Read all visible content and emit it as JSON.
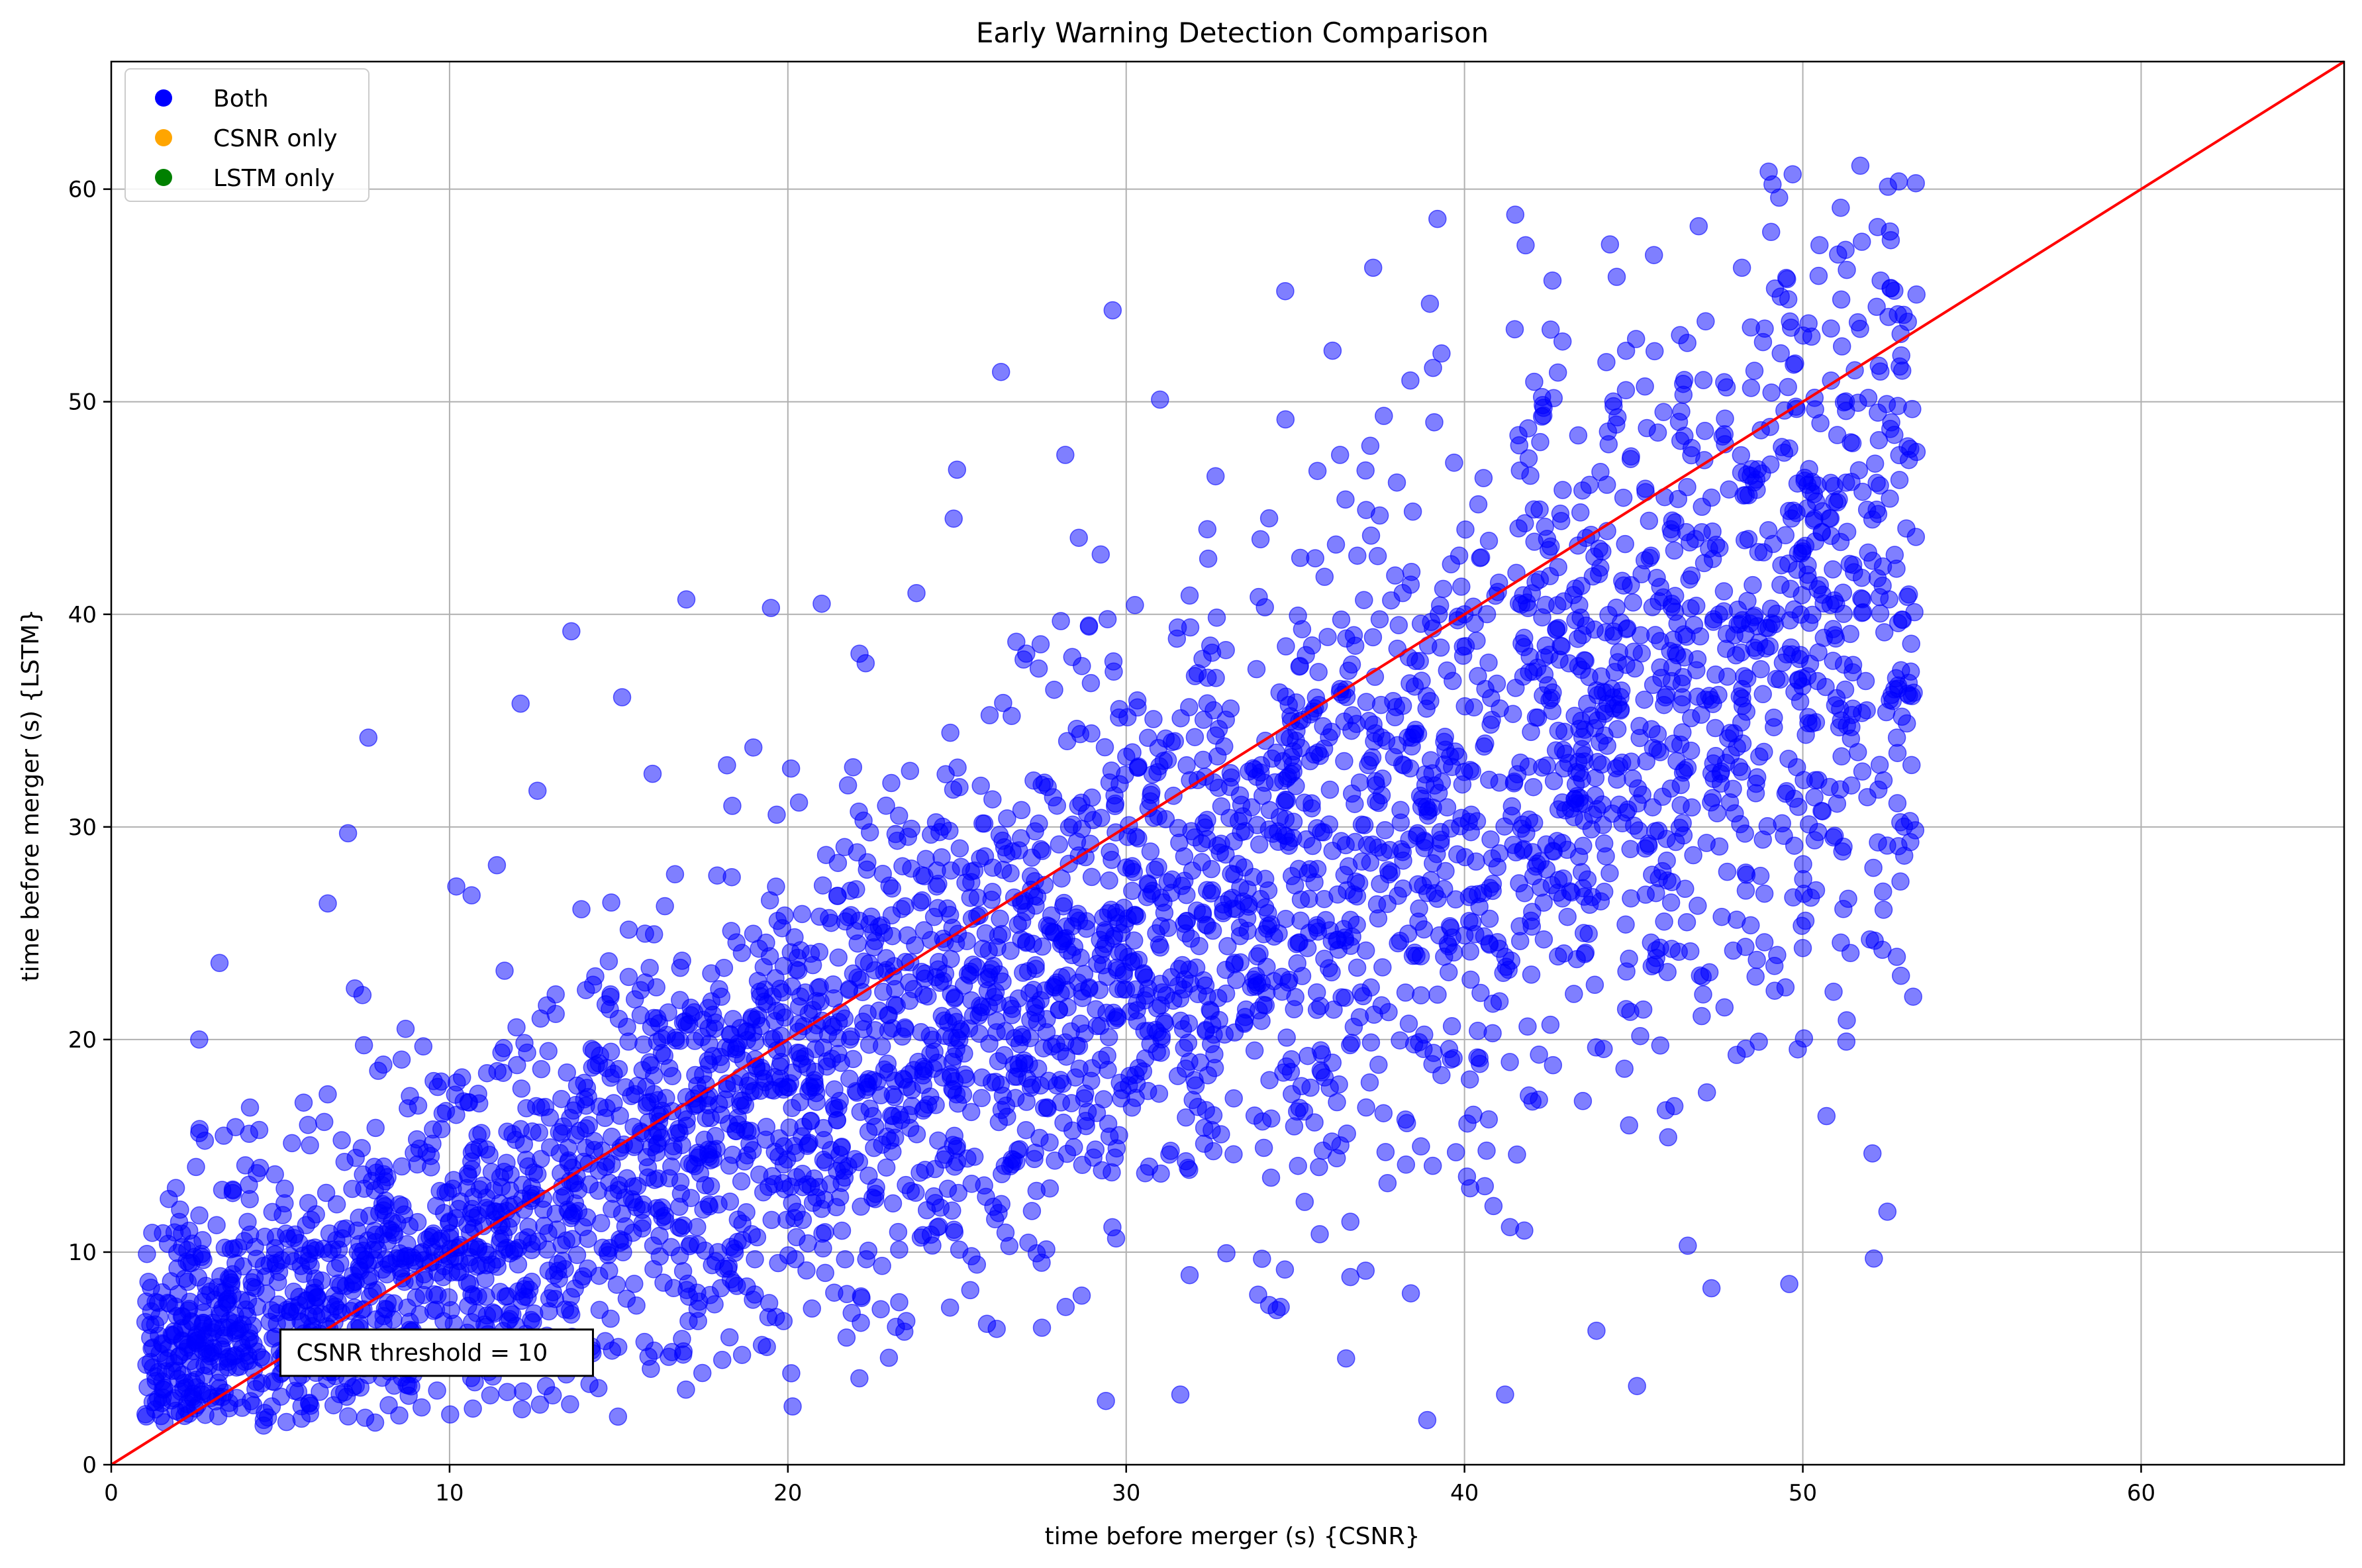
{
  "chart_data": {
    "type": "scatter",
    "title": "Early Warning Detection Comparison",
    "xlabel": "time before merger (s) {CSNR}",
    "ylabel": "time before merger (s) {LSTM}",
    "xlim": [
      0,
      66
    ],
    "ylim": [
      0,
      66
    ],
    "xticks": [
      0,
      10,
      20,
      30,
      40,
      50,
      60
    ],
    "yticks": [
      0,
      10,
      20,
      30,
      40,
      50,
      60
    ],
    "grid": true,
    "legend_position": "top-left",
    "legend": [
      {
        "label": "Both",
        "color": "#0000ff"
      },
      {
        "label": "CSNR only",
        "color": "#ffa500"
      },
      {
        "label": "LSTM only",
        "color": "#008000"
      }
    ],
    "reference_line": {
      "x": [
        0,
        66
      ],
      "y": [
        0,
        66
      ],
      "color": "#ff0000"
    },
    "annotation": {
      "text": "CSNR threshold = 10",
      "x": 5,
      "y": 5.3
    },
    "series": [
      {
        "label": "Both",
        "color": "#0000ff",
        "opacity": 0.5,
        "x_range": [
          1,
          53.4
        ],
        "y_range": [
          1.8,
          61.1
        ],
        "points_approx": 4000,
        "sample_points": [
          [
            1.1,
            8.6
          ],
          [
            1.3,
            2.6
          ],
          [
            1.5,
            2.9
          ],
          [
            1.7,
            12.5
          ],
          [
            2.1,
            5.8
          ],
          [
            2.4,
            10.4
          ],
          [
            2.6,
            15.6
          ],
          [
            2.6,
            20.0
          ],
          [
            3.2,
            23.6
          ],
          [
            3.6,
            12.9
          ],
          [
            4.1,
            16.8
          ],
          [
            4.2,
            2.8
          ],
          [
            5.2,
            5.6
          ],
          [
            6.4,
            26.4
          ],
          [
            7.0,
            29.7
          ],
          [
            7.2,
            22.4
          ],
          [
            7.6,
            34.2
          ],
          [
            8.7,
            20.5
          ],
          [
            9.2,
            10.0
          ],
          [
            10.2,
            27.2
          ],
          [
            10.6,
            8.5
          ],
          [
            11.4,
            28.2
          ],
          [
            12.1,
            35.8
          ],
          [
            12.6,
            31.7
          ],
          [
            13.6,
            39.2
          ],
          [
            14.4,
            3.6
          ],
          [
            15.1,
            36.1
          ],
          [
            16.0,
            32.5
          ],
          [
            17.0,
            40.7
          ],
          [
            17.5,
            12.0
          ],
          [
            18.2,
            32.9
          ],
          [
            19.5,
            40.3
          ],
          [
            20.1,
            4.3
          ],
          [
            21.0,
            40.5
          ],
          [
            22.3,
            37.7
          ],
          [
            23.1,
            16.4
          ],
          [
            23.8,
            41.0
          ],
          [
            24.9,
            44.5
          ],
          [
            25.0,
            46.8
          ],
          [
            26.3,
            51.4
          ],
          [
            26.8,
            25.4
          ],
          [
            27.5,
            9.5
          ],
          [
            28.2,
            47.5
          ],
          [
            28.6,
            43.6
          ],
          [
            29.4,
            3.0
          ],
          [
            29.6,
            54.3
          ],
          [
            30.5,
            18.5
          ],
          [
            31.0,
            50.1
          ],
          [
            31.6,
            3.3
          ],
          [
            32.4,
            44.0
          ],
          [
            33.1,
            27.8
          ],
          [
            33.9,
            8.0
          ],
          [
            34.7,
            55.2
          ],
          [
            35.0,
            22.0
          ],
          [
            35.7,
            14.0
          ],
          [
            36.1,
            52.4
          ],
          [
            36.5,
            5.0
          ],
          [
            37.3,
            56.3
          ],
          [
            38.0,
            46.2
          ],
          [
            38.4,
            51.0
          ],
          [
            38.9,
            2.1
          ],
          [
            39.2,
            58.6
          ],
          [
            39.4,
            34.0
          ],
          [
            40.0,
            40.0
          ],
          [
            40.6,
            13.1
          ],
          [
            41.2,
            3.3
          ],
          [
            41.5,
            58.8
          ],
          [
            42.0,
            26.0
          ],
          [
            42.6,
            55.7
          ],
          [
            43.4,
            31.1
          ],
          [
            43.9,
            6.3
          ],
          [
            44.3,
            57.4
          ],
          [
            44.9,
            21.3
          ],
          [
            45.1,
            3.7
          ],
          [
            45.6,
            56.9
          ],
          [
            46.2,
            43.0
          ],
          [
            46.6,
            10.3
          ],
          [
            47.3,
            8.3
          ],
          [
            47.7,
            48.0
          ],
          [
            48.2,
            56.3
          ],
          [
            48.7,
            19.9
          ],
          [
            49.3,
            59.6
          ],
          [
            49.6,
            8.5
          ],
          [
            49.7,
            60.7
          ],
          [
            50.0,
            24.3
          ],
          [
            50.7,
            16.4
          ],
          [
            51.3,
            56.2
          ],
          [
            51.7,
            61.1
          ],
          [
            52.1,
            9.7
          ],
          [
            52.3,
            55.7
          ],
          [
            52.5,
            11.9
          ],
          [
            52.6,
            57.6
          ],
          [
            52.9,
            23.0
          ],
          [
            53.1,
            47.9
          ],
          [
            53.3,
            40.1
          ]
        ]
      }
    ]
  }
}
